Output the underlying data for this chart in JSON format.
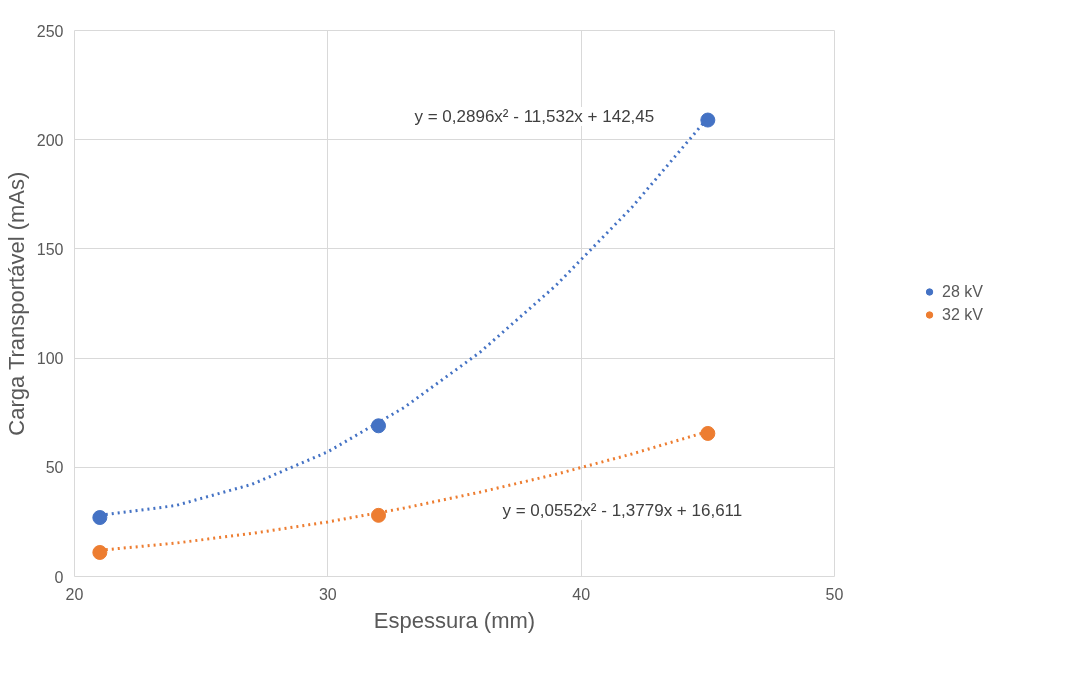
{
  "chart_data": {
    "type": "scatter",
    "xlabel": "Espessura (mm)",
    "ylabel": "Carga Transportável (mAs)",
    "x": [
      21,
      32,
      45
    ],
    "series": [
      {
        "name": "28 kV",
        "color": "#4472c4",
        "values": [
          27,
          69,
          209
        ],
        "marker": "circle"
      },
      {
        "name": "32 kV",
        "color": "#ed7d31",
        "values": [
          11,
          28,
          65.5
        ],
        "marker": "circle"
      },
      {
        "type": "line",
        "color": "#4472c4",
        "line_style": "dotted",
        "marker": "none",
        "x": [
          21,
          24,
          27,
          30,
          33,
          36,
          39,
          42,
          45
        ],
        "values": [
          28.0,
          32.5,
          42.2,
          57.1,
          77.3,
          102.6,
          133.2,
          169.0,
          210.0
        ]
      },
      {
        "type": "line",
        "color": "#ed7d31",
        "line_style": "dotted",
        "marker": "none",
        "x": [
          21,
          24,
          27,
          30,
          33,
          36,
          39,
          42,
          45
        ],
        "values": [
          12.0,
          15.3,
          19.7,
          25.0,
          31.3,
          38.6,
          46.8,
          56.1,
          66.4
        ]
      }
    ],
    "annotations": [
      "y = 0,2896x² - 11,532x + 142,45",
      "y = 0,0552x² - 1,3779x + 16,611"
    ],
    "xlim": [
      20,
      50
    ],
    "xticks": [
      20,
      30,
      40,
      50
    ],
    "ylim": [
      0,
      250
    ],
    "yticks": [
      0,
      50,
      100,
      150,
      200,
      250
    ],
    "grid": true,
    "legend": "right"
  }
}
